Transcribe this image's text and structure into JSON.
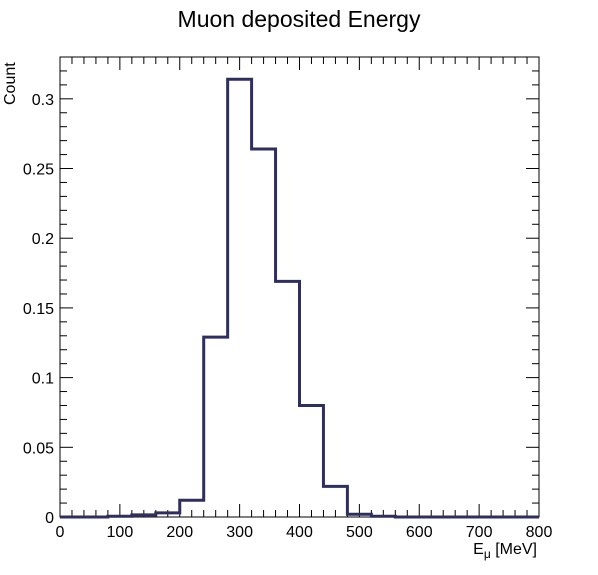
{
  "chart_data": {
    "type": "histogram",
    "title": "Muon deposited Energy",
    "xlabel_base": "E",
    "xlabel_sub": "μ",
    "xlabel_unit": " [MeV]",
    "ylabel": "Count",
    "xlim": [
      0,
      800
    ],
    "ylim": [
      0,
      0.33
    ],
    "x_major_ticks": [
      0,
      100,
      200,
      300,
      400,
      500,
      600,
      700,
      800
    ],
    "x_tick_labels": [
      "0",
      "100",
      "200",
      "300",
      "400",
      "500",
      "600",
      "700",
      "800"
    ],
    "y_major_ticks": [
      0,
      0.05,
      0.1,
      0.15,
      0.2,
      0.25,
      0.3
    ],
    "y_tick_labels": [
      "0",
      "0.05",
      "0.1",
      "0.15",
      "0.2",
      "0.25",
      "0.3"
    ],
    "bin_edges": [
      0,
      40,
      80,
      120,
      160,
      200,
      240,
      280,
      320,
      360,
      400,
      440,
      480,
      520,
      560,
      600,
      640,
      680,
      720,
      760,
      800
    ],
    "values": [
      0,
      0,
      0.0005,
      0.0015,
      0.003,
      0.012,
      0.129,
      0.314,
      0.264,
      0.169,
      0.08,
      0.022,
      0.002,
      0.0005,
      0,
      0,
      0,
      0,
      0,
      0
    ],
    "line_color": "#2e2f5e",
    "grid": false
  }
}
